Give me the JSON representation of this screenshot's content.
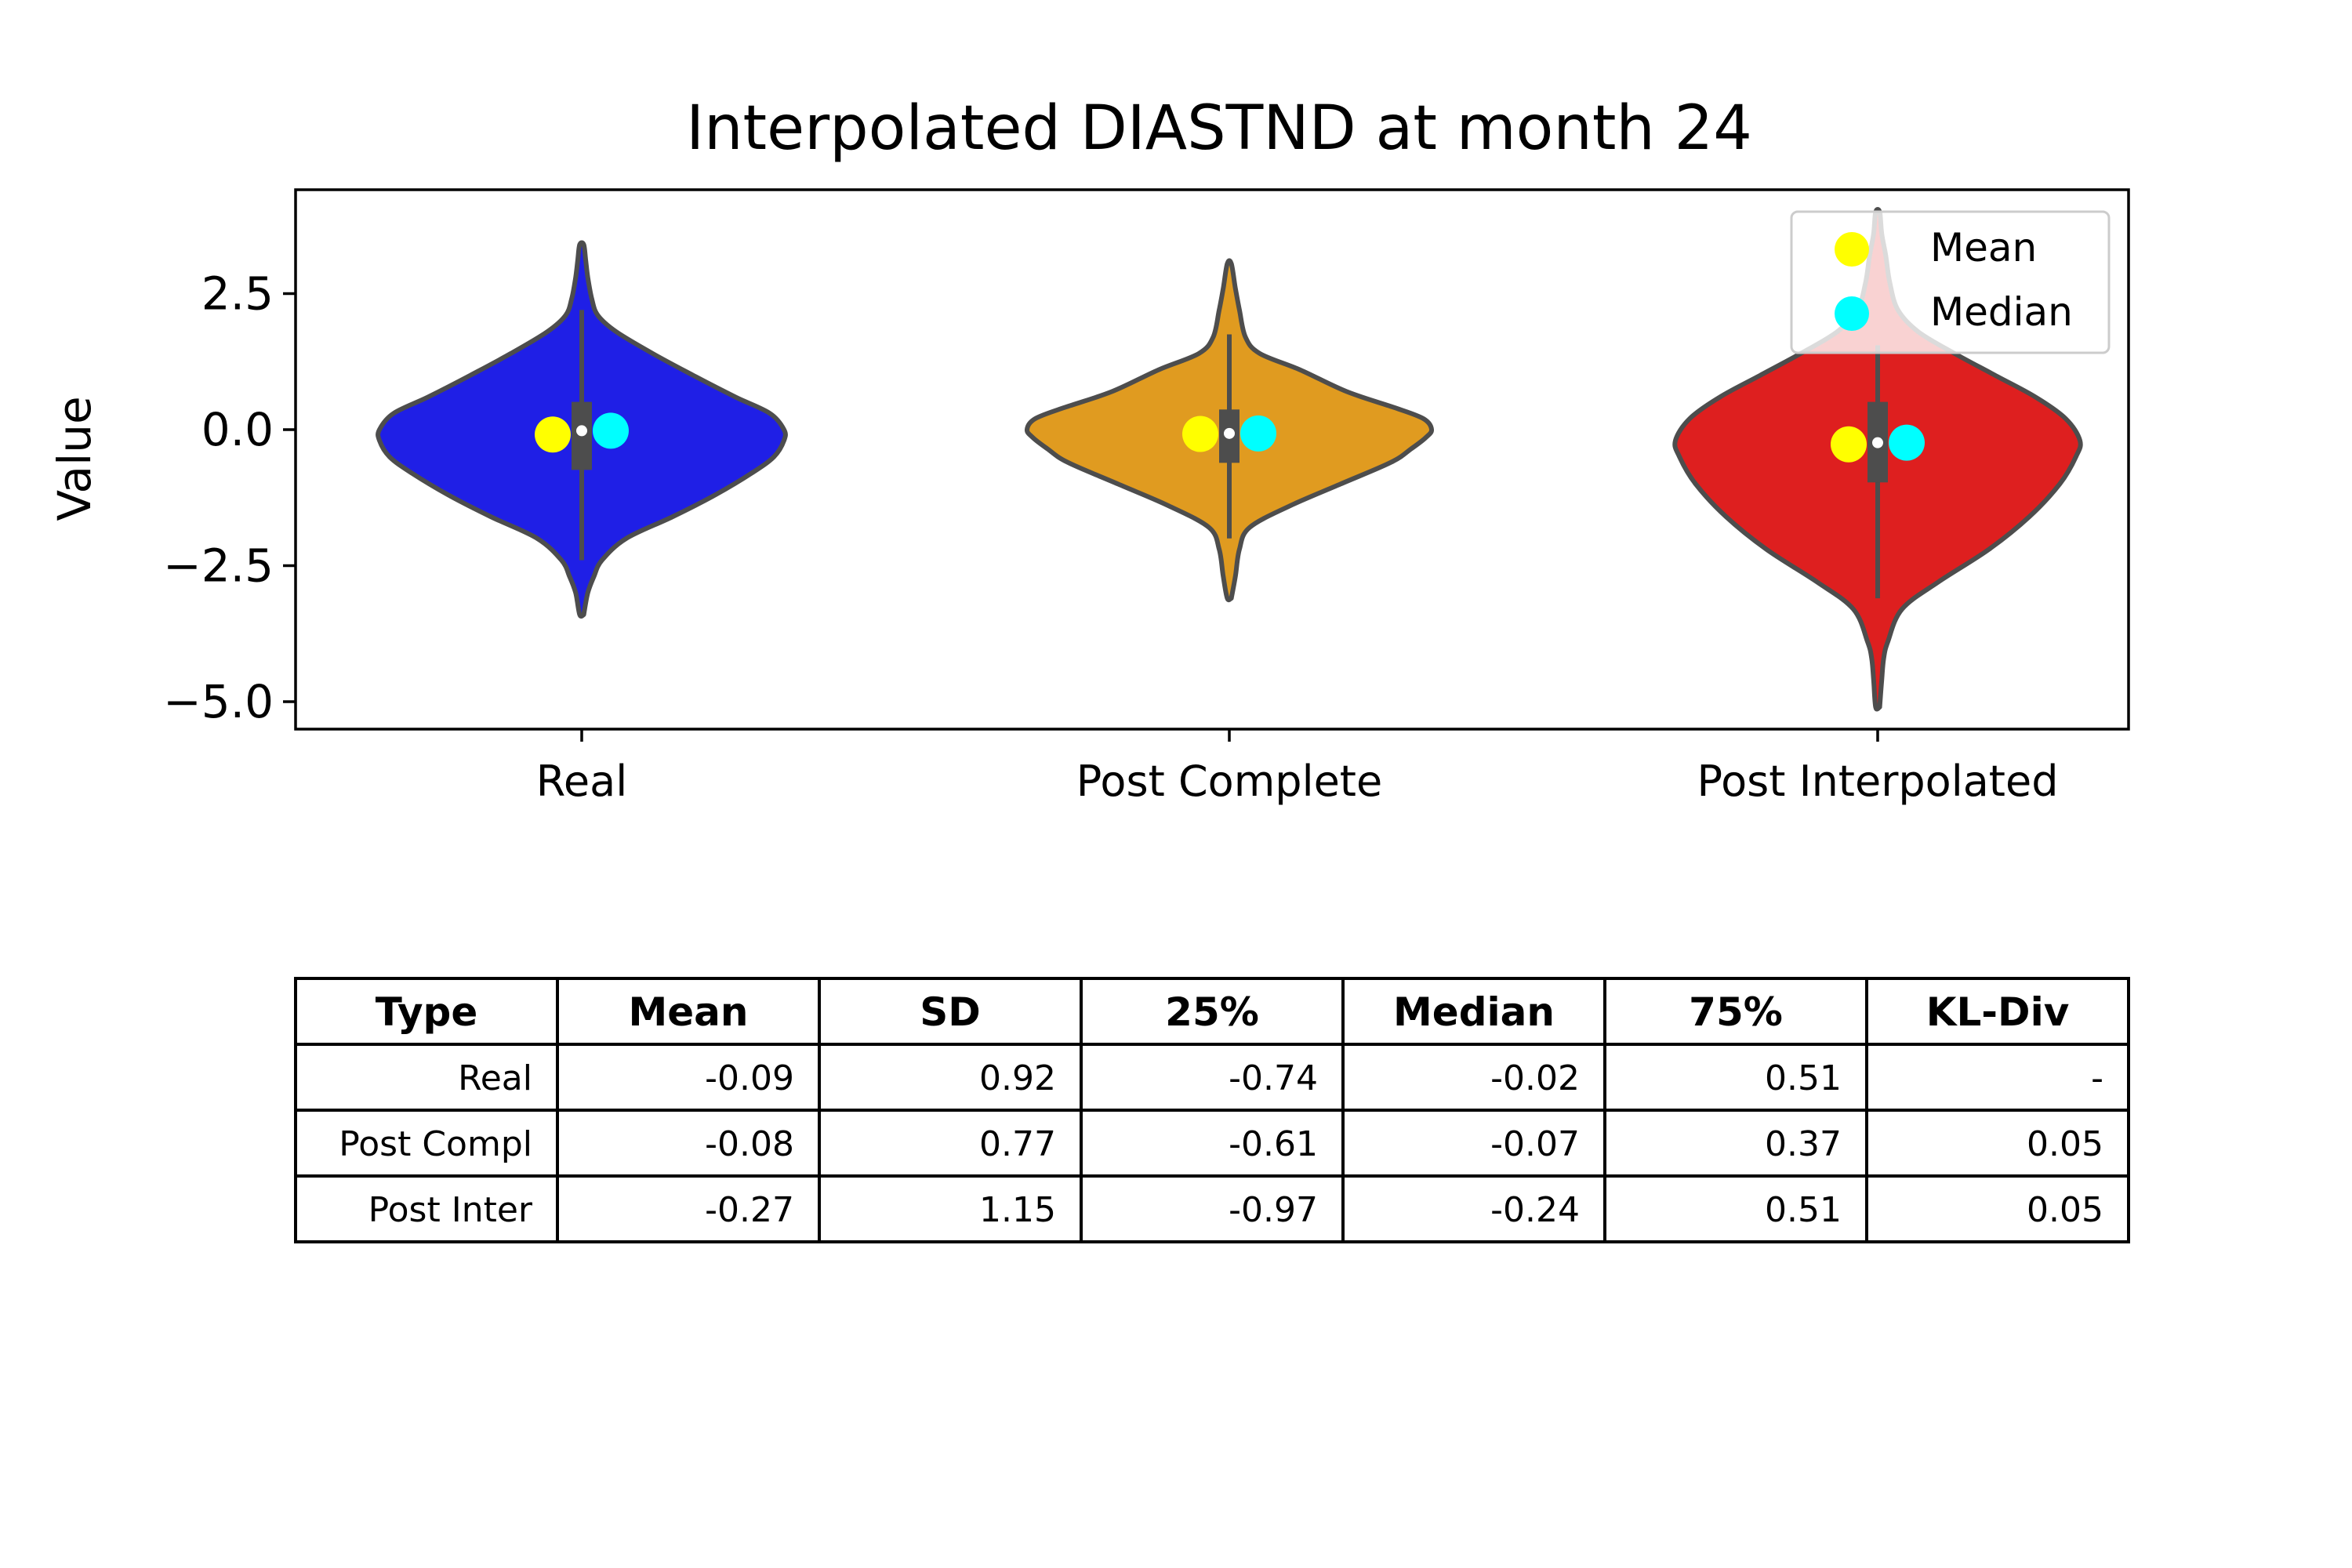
{
  "chart_data": {
    "type": "violin",
    "title": "Interpolated DIASTND at month 24",
    "xlabel": "",
    "ylabel": "Value",
    "ylim": [
      -5.5,
      4.3
    ],
    "yticks": [
      2.5,
      0.0,
      -2.5,
      -5.0
    ],
    "ytick_labels": [
      "2.5",
      "0.0",
      "−2.5",
      "−5.0"
    ],
    "categories": [
      "Real",
      "Post Complete",
      "Post Interpolated"
    ],
    "colors": [
      "#1f1fe6",
      "#e09b20",
      "#de1f1f"
    ],
    "legend": {
      "placement": "top-right",
      "entries": [
        {
          "label": "Mean",
          "color": "#ffff00"
        },
        {
          "label": "Median",
          "color": "#00ffff"
        }
      ]
    },
    "series": [
      {
        "category": "Real",
        "mean": -0.09,
        "median": -0.02,
        "q1": -0.74,
        "q3": 0.51,
        "whisker_low": -2.4,
        "whisker_high": 2.2,
        "violin_profile": [
          [
            -3.4,
            0.01
          ],
          [
            -3.0,
            0.03
          ],
          [
            -2.7,
            0.06
          ],
          [
            -2.4,
            0.1
          ],
          [
            -2.0,
            0.22
          ],
          [
            -1.6,
            0.45
          ],
          [
            -1.2,
            0.66
          ],
          [
            -0.8,
            0.84
          ],
          [
            -0.5,
            0.95
          ],
          [
            -0.2,
            1.0
          ],
          [
            0.0,
            1.0
          ],
          [
            0.3,
            0.93
          ],
          [
            0.6,
            0.76
          ],
          [
            1.0,
            0.55
          ],
          [
            1.4,
            0.35
          ],
          [
            1.8,
            0.17
          ],
          [
            2.1,
            0.08
          ],
          [
            2.4,
            0.05
          ],
          [
            2.8,
            0.03
          ],
          [
            3.1,
            0.02
          ],
          [
            3.4,
            0.01
          ]
        ]
      },
      {
        "category": "Post Complete",
        "mean": -0.08,
        "median": -0.07,
        "q1": -0.61,
        "q3": 0.37,
        "whisker_low": -2.0,
        "whisker_high": 1.75,
        "violin_profile": [
          [
            -3.1,
            0.01
          ],
          [
            -2.7,
            0.03
          ],
          [
            -2.2,
            0.05
          ],
          [
            -1.8,
            0.1
          ],
          [
            -1.4,
            0.3
          ],
          [
            -1.0,
            0.55
          ],
          [
            -0.6,
            0.8
          ],
          [
            -0.35,
            0.9
          ],
          [
            -0.15,
            0.97
          ],
          [
            0.0,
            1.0
          ],
          [
            0.2,
            0.96
          ],
          [
            0.4,
            0.82
          ],
          [
            0.7,
            0.58
          ],
          [
            1.1,
            0.35
          ],
          [
            1.4,
            0.15
          ],
          [
            1.7,
            0.08
          ],
          [
            2.2,
            0.05
          ],
          [
            2.6,
            0.03
          ],
          [
            3.05,
            0.01
          ]
        ]
      },
      {
        "category": "Post Interpolated",
        "mean": -0.27,
        "median": -0.24,
        "q1": -0.97,
        "q3": 0.51,
        "whisker_low": -3.1,
        "whisker_high": 1.55,
        "violin_profile": [
          [
            -5.1,
            0.01
          ],
          [
            -4.6,
            0.02
          ],
          [
            -4.2,
            0.03
          ],
          [
            -3.9,
            0.05
          ],
          [
            -3.3,
            0.12
          ],
          [
            -2.8,
            0.3
          ],
          [
            -2.2,
            0.55
          ],
          [
            -1.6,
            0.75
          ],
          [
            -1.0,
            0.9
          ],
          [
            -0.5,
            0.98
          ],
          [
            -0.2,
            1.0
          ],
          [
            0.2,
            0.93
          ],
          [
            0.6,
            0.78
          ],
          [
            1.0,
            0.58
          ],
          [
            1.4,
            0.38
          ],
          [
            1.8,
            0.2
          ],
          [
            2.2,
            0.1
          ],
          [
            2.7,
            0.06
          ],
          [
            3.2,
            0.04
          ],
          [
            3.6,
            0.02
          ],
          [
            4.0,
            0.01
          ]
        ]
      }
    ],
    "table": {
      "columns": [
        "Type",
        "Mean",
        "SD",
        "25%",
        "Median",
        "75%",
        "KL-Div"
      ],
      "rows": [
        [
          "Real",
          "-0.09",
          "0.92",
          "-0.74",
          "-0.02",
          "0.51",
          "-"
        ],
        [
          "Post Compl",
          "-0.08",
          "0.77",
          "-0.61",
          "-0.07",
          "0.37",
          "0.05"
        ],
        [
          "Post Inter",
          "-0.27",
          "1.15",
          "-0.97",
          "-0.24",
          "0.51",
          "0.05"
        ]
      ]
    }
  }
}
